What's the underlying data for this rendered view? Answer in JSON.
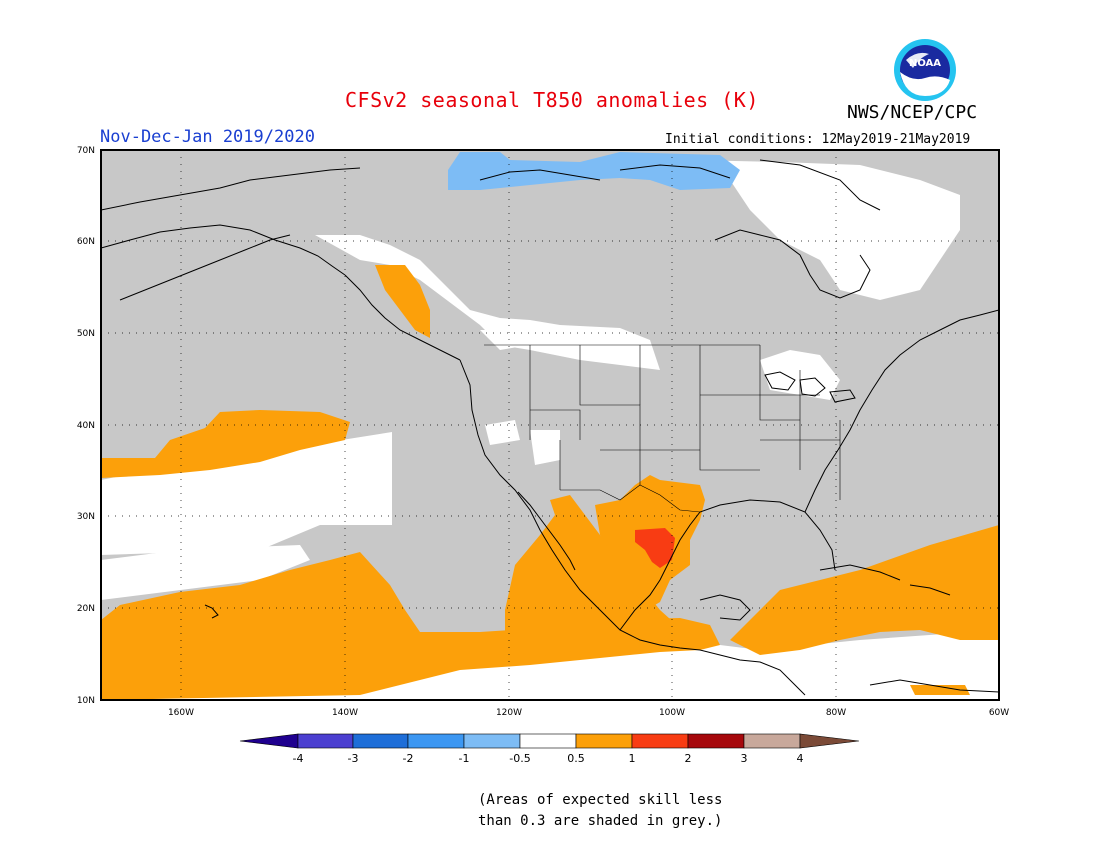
{
  "title": "CFSv2 seasonal T850 anomalies (K)",
  "agency": "NWS/NCEP/CPC",
  "logo_text": "NOAA",
  "period": "Nov-Dec-Jan 2019/2020",
  "initial_conditions": "Initial conditions: 12May2019-21May2019",
  "map": {
    "lon_range": [
      -170,
      -60
    ],
    "lat_range": [
      10,
      70
    ],
    "lat_labels": [
      "70N",
      "60N",
      "50N",
      "40N",
      "30N",
      "20N",
      "10N"
    ],
    "lon_labels": [
      "160W",
      "140W",
      "120W",
      "100W",
      "80W",
      "60W"
    ]
  },
  "legend": {
    "ticks": [
      "-4",
      "-3",
      "-2",
      "-1",
      "-0.5",
      "0.5",
      "1",
      "2",
      "3",
      "4"
    ],
    "colors": {
      "lt_-4": "#1f008f",
      "-4_-3": "#4b3fd0",
      "-3_-2": "#1e6ed8",
      "-2_-1": "#3c97f2",
      "-1_-0.5": "#7dbcf5",
      "-0.5_0.5": "#ffffff",
      "0.5_1": "#fca00a",
      "1_2": "#f83c13",
      "2_3": "#a6080c",
      "3_4": "#c8a89b",
      "gt_4": "#7b4a37"
    },
    "grey_color": "#c8c8c8"
  },
  "note_lines": [
    "(Areas of expected skill less",
    "than 0.3 are shaded in grey.)"
  ]
}
